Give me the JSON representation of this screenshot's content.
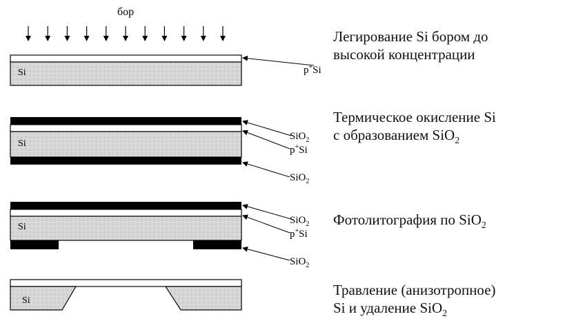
{
  "colors": {
    "layer": "#000000",
    "silicon": "#d9d9d9",
    "boron_doped": "#ffffff"
  },
  "dopant_label": "бор",
  "silicon_label": "Si",
  "labels": {
    "p_si": {
      "p": "p",
      "sup": "+",
      "si": "Si"
    },
    "sio2": {
      "text": "SiO",
      "sub": "2"
    }
  },
  "steps": [
    {
      "line1": "Легирование  Si  бором  до",
      "line2": "высокой концентрации"
    },
    {
      "line1": "Термическое окисление Si",
      "line2_text": "с образованием SiO",
      "line2_sub": "2"
    },
    {
      "line1_text": "Фотолитография по SiO",
      "line1_sub": "2"
    },
    {
      "line1": "Травление  (анизотропное)",
      "line2_text": "Si и удаление SiO",
      "line2_sub": "2"
    }
  ]
}
